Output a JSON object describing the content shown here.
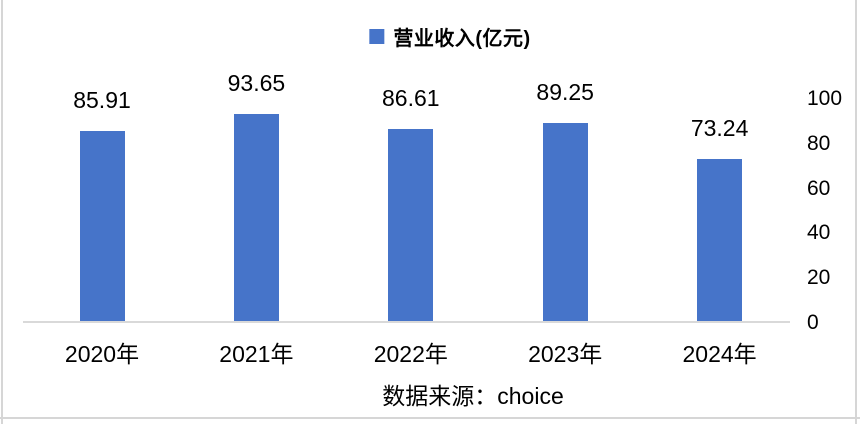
{
  "colors": {
    "bar": "#4674c9",
    "axis_line": "#d9d9d9",
    "border": "#d6d6d6",
    "text": "#000000"
  },
  "legend": {
    "label": "营业收入(亿元)",
    "marker_color": "#4674c9"
  },
  "chart_data": {
    "type": "bar",
    "title": "营业收入(亿元)",
    "categories": [
      "2020年",
      "2021年",
      "2022年",
      "2023年",
      "2024年"
    ],
    "values": [
      85.91,
      93.65,
      86.61,
      89.25,
      73.24
    ],
    "data_labels": [
      "85.91",
      "93.65",
      "86.61",
      "89.25",
      "73.24"
    ],
    "xlabel": "",
    "ylabel": "",
    "ylim": [
      0,
      100
    ],
    "y_ticks": [
      0,
      20,
      40,
      60,
      80,
      100
    ],
    "y_axis_position": "right",
    "grid": false,
    "legend_position": "top",
    "bar_color": "#4674c9"
  },
  "footer": {
    "source_text": "数据来源：choice"
  }
}
